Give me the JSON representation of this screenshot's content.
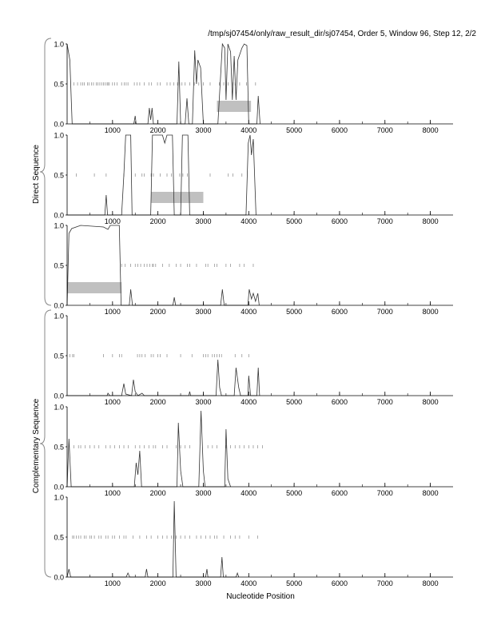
{
  "chart_data": {
    "type": "line",
    "title": "/tmp/sj07454/only/raw_result_dir/sj07454, Order 5, Window 96, Step 12, 2/2",
    "xlabel": "Nucleotide Position",
    "group_labels": [
      "Direct Sequence",
      "Complementary Sequence"
    ],
    "xlim": [
      0,
      8500
    ],
    "ylim": [
      0,
      1
    ],
    "x_ticks": [
      1000,
      2000,
      3000,
      4000,
      5000,
      6000,
      7000,
      8000
    ],
    "x_tick_labels": [
      "1000",
      "2000",
      "3000",
      "4000",
      "5000",
      "6000",
      "7000",
      "8000"
    ],
    "y_tick_labels": [
      "0.0",
      "0.5",
      "1.0"
    ],
    "colors": {
      "line": "#333333",
      "box": "#c0c0c0",
      "marker": "#888888"
    },
    "panels": [
      {
        "name": "direct-frame-1",
        "points": [
          [
            0,
            1.0
          ],
          [
            60,
            0.8
          ],
          [
            110,
            0
          ],
          [
            1470,
            0
          ],
          [
            1500,
            0.1
          ],
          [
            1520,
            0
          ],
          [
            1780,
            0
          ],
          [
            1810,
            0.2
          ],
          [
            1840,
            0.05
          ],
          [
            1870,
            0.2
          ],
          [
            1900,
            0
          ],
          [
            2420,
            0
          ],
          [
            2460,
            0.78
          ],
          [
            2500,
            0
          ],
          [
            2600,
            0
          ],
          [
            2640,
            0.32
          ],
          [
            2680,
            0
          ],
          [
            2760,
            0
          ],
          [
            2810,
            0.92
          ],
          [
            2850,
            0.5
          ],
          [
            2880,
            0.8
          ],
          [
            2940,
            0.7
          ],
          [
            3000,
            0
          ],
          [
            3320,
            0
          ],
          [
            3380,
            0.6
          ],
          [
            3420,
            1.0
          ],
          [
            3470,
            0.95
          ],
          [
            3500,
            0.3
          ],
          [
            3540,
            1.0
          ],
          [
            3600,
            0.9
          ],
          [
            3640,
            0.3
          ],
          [
            3680,
            0.85
          ],
          [
            3720,
            0.3
          ],
          [
            3760,
            0.8
          ],
          [
            3850,
            0.95
          ],
          [
            3900,
            1.0
          ],
          [
            3960,
            0.98
          ],
          [
            4000,
            0
          ],
          [
            4180,
            0
          ],
          [
            4210,
            0.35
          ],
          [
            4250,
            0
          ]
        ],
        "markers": [
          150,
          230,
          300,
          340,
          380,
          450,
          480,
          540,
          580,
          640,
          680,
          720,
          760,
          800,
          840,
          880,
          900,
          930,
          1000,
          1050,
          1100,
          1200,
          1260,
          1300,
          1340,
          1480,
          1540,
          1600,
          1700,
          1800,
          1860,
          1990,
          2050,
          2200,
          2270,
          2350,
          2430,
          2480,
          2530,
          2600,
          2700,
          2800,
          2900,
          3000,
          3150,
          3350,
          3450,
          3550,
          3650,
          3700,
          3800,
          3950,
          4150
        ],
        "box": [
          3300,
          4050,
          0.15,
          0.29
        ]
      },
      {
        "name": "direct-frame-2",
        "points": [
          [
            0,
            0
          ],
          [
            830,
            0
          ],
          [
            860,
            0.25
          ],
          [
            890,
            0
          ],
          [
            1200,
            0
          ],
          [
            1250,
            0.5
          ],
          [
            1290,
            1.0
          ],
          [
            1400,
            1.0
          ],
          [
            1430,
            0
          ],
          [
            1840,
            0
          ],
          [
            1880,
            1.0
          ],
          [
            2100,
            1.0
          ],
          [
            2150,
            0.9
          ],
          [
            2200,
            1.0
          ],
          [
            2320,
            1.0
          ],
          [
            2360,
            0
          ],
          [
            2500,
            0
          ],
          [
            2540,
            1.0
          ],
          [
            2660,
            1.0
          ],
          [
            2700,
            0
          ],
          [
            3940,
            0
          ],
          [
            3990,
            0.9
          ],
          [
            4030,
            1.0
          ],
          [
            4060,
            0.75
          ],
          [
            4100,
            0.95
          ],
          [
            4160,
            0
          ]
        ],
        "markers": [
          200,
          600,
          860,
          1250,
          1500,
          1650,
          1700,
          1850,
          1900,
          2050,
          2200,
          2300,
          2480,
          2550,
          2650,
          3150,
          3550,
          3650,
          3850
        ],
        "box": [
          1850,
          3000,
          0.15,
          0.29
        ]
      },
      {
        "name": "direct-frame-3",
        "points": [
          [
            0,
            0
          ],
          [
            40,
            0.9
          ],
          [
            100,
            0.96
          ],
          [
            300,
            1.0
          ],
          [
            800,
            0.98
          ],
          [
            900,
            0.95
          ],
          [
            950,
            1.0
          ],
          [
            1150,
            1.0
          ],
          [
            1190,
            0
          ],
          [
            1370,
            0
          ],
          [
            1400,
            0.2
          ],
          [
            1440,
            0
          ],
          [
            2330,
            0
          ],
          [
            2360,
            0.1
          ],
          [
            2390,
            0
          ],
          [
            3380,
            0
          ],
          [
            3420,
            0.2
          ],
          [
            3460,
            0
          ],
          [
            3980,
            0
          ],
          [
            4010,
            0.2
          ],
          [
            4060,
            0.08
          ],
          [
            4100,
            0.15
          ],
          [
            4150,
            0.05
          ],
          [
            4200,
            0.15
          ],
          [
            4230,
            0
          ]
        ],
        "markers": [
          1200,
          1280,
          1400,
          1500,
          1560,
          1620,
          1700,
          1760,
          1820,
          1880,
          1900,
          1950,
          2100,
          2250,
          2400,
          2500,
          2650,
          2700,
          2850,
          3050,
          3100,
          3250,
          3300,
          3500,
          3600,
          3800,
          3900,
          4100
        ],
        "box": [
          0,
          1200,
          0.15,
          0.29
        ]
      },
      {
        "name": "complementary-frame-1",
        "points": [
          [
            0,
            0
          ],
          [
            880,
            0
          ],
          [
            900,
            0.03
          ],
          [
            940,
            0
          ],
          [
            1200,
            0
          ],
          [
            1250,
            0.15
          ],
          [
            1290,
            0.02
          ],
          [
            1420,
            0
          ],
          [
            1460,
            0.2
          ],
          [
            1500,
            0.05
          ],
          [
            1560,
            0
          ],
          [
            1650,
            0.03
          ],
          [
            1700,
            0
          ],
          [
            2680,
            0
          ],
          [
            2700,
            0.05
          ],
          [
            2720,
            0
          ],
          [
            3280,
            0
          ],
          [
            3320,
            0.45
          ],
          [
            3360,
            0.1
          ],
          [
            3400,
            0
          ],
          [
            3680,
            0
          ],
          [
            3720,
            0.35
          ],
          [
            3780,
            0.1
          ],
          [
            3820,
            0
          ],
          [
            3980,
            0
          ],
          [
            4000,
            0.25
          ],
          [
            4040,
            0
          ],
          [
            4180,
            0
          ],
          [
            4210,
            0.35
          ],
          [
            4240,
            0
          ]
        ],
        "markers": [
          60,
          120,
          150,
          800,
          1000,
          1150,
          1200,
          1550,
          1600,
          1650,
          1720,
          1850,
          1900,
          2000,
          2050,
          2200,
          2500,
          2750,
          3000,
          3050,
          3100,
          3200,
          3250,
          3300,
          3350,
          3400,
          3700,
          3850,
          4000
        ],
        "box": null
      },
      {
        "name": "complementary-frame-2",
        "points": [
          [
            0,
            0
          ],
          [
            40,
            0.6
          ],
          [
            90,
            0
          ],
          [
            1480,
            0
          ],
          [
            1520,
            0.3
          ],
          [
            1560,
            0.15
          ],
          [
            1600,
            0.45
          ],
          [
            1640,
            0
          ],
          [
            2420,
            0
          ],
          [
            2450,
            0.8
          ],
          [
            2500,
            0.2
          ],
          [
            2550,
            0
          ],
          [
            2900,
            0
          ],
          [
            2950,
            0.95
          ],
          [
            3000,
            0.2
          ],
          [
            3040,
            0
          ],
          [
            3470,
            0
          ],
          [
            3500,
            0.72
          ],
          [
            3540,
            0.1
          ],
          [
            3600,
            0
          ]
        ],
        "markers": [
          150,
          250,
          300,
          400,
          500,
          600,
          700,
          850,
          950,
          1050,
          1150,
          1250,
          1350,
          1500,
          1600,
          1700,
          1800,
          1900,
          1950,
          2100,
          2200,
          2400,
          2500,
          2600,
          2700,
          3100,
          3200,
          3300,
          3500,
          3600,
          3700,
          3800,
          3900,
          4000,
          4100,
          4200,
          4300
        ],
        "box": null
      },
      {
        "name": "complementary-frame-3",
        "points": [
          [
            0,
            0
          ],
          [
            40,
            0.1
          ],
          [
            80,
            0
          ],
          [
            1300,
            0
          ],
          [
            1340,
            0.05
          ],
          [
            1380,
            0
          ],
          [
            1720,
            0
          ],
          [
            1750,
            0.1
          ],
          [
            1780,
            0
          ],
          [
            2330,
            0
          ],
          [
            2360,
            0.95
          ],
          [
            2400,
            0
          ],
          [
            3050,
            0
          ],
          [
            3080,
            0.1
          ],
          [
            3100,
            0
          ],
          [
            3380,
            0
          ],
          [
            3410,
            0.25
          ],
          [
            3440,
            0
          ],
          [
            3720,
            0
          ],
          [
            3750,
            0.05
          ],
          [
            3780,
            0
          ]
        ],
        "markers": [
          120,
          150,
          200,
          250,
          300,
          380,
          420,
          500,
          540,
          600,
          700,
          750,
          850,
          900,
          1000,
          1050,
          1150,
          1250,
          1300,
          1450,
          1600,
          1750,
          1850,
          2000,
          2100,
          2200,
          2300,
          2350,
          2400,
          2500,
          2600,
          2700,
          2850,
          2950,
          3050,
          3150,
          3250,
          3300,
          3450,
          3600,
          3700,
          3800,
          4000,
          4200
        ],
        "box": null
      }
    ]
  }
}
